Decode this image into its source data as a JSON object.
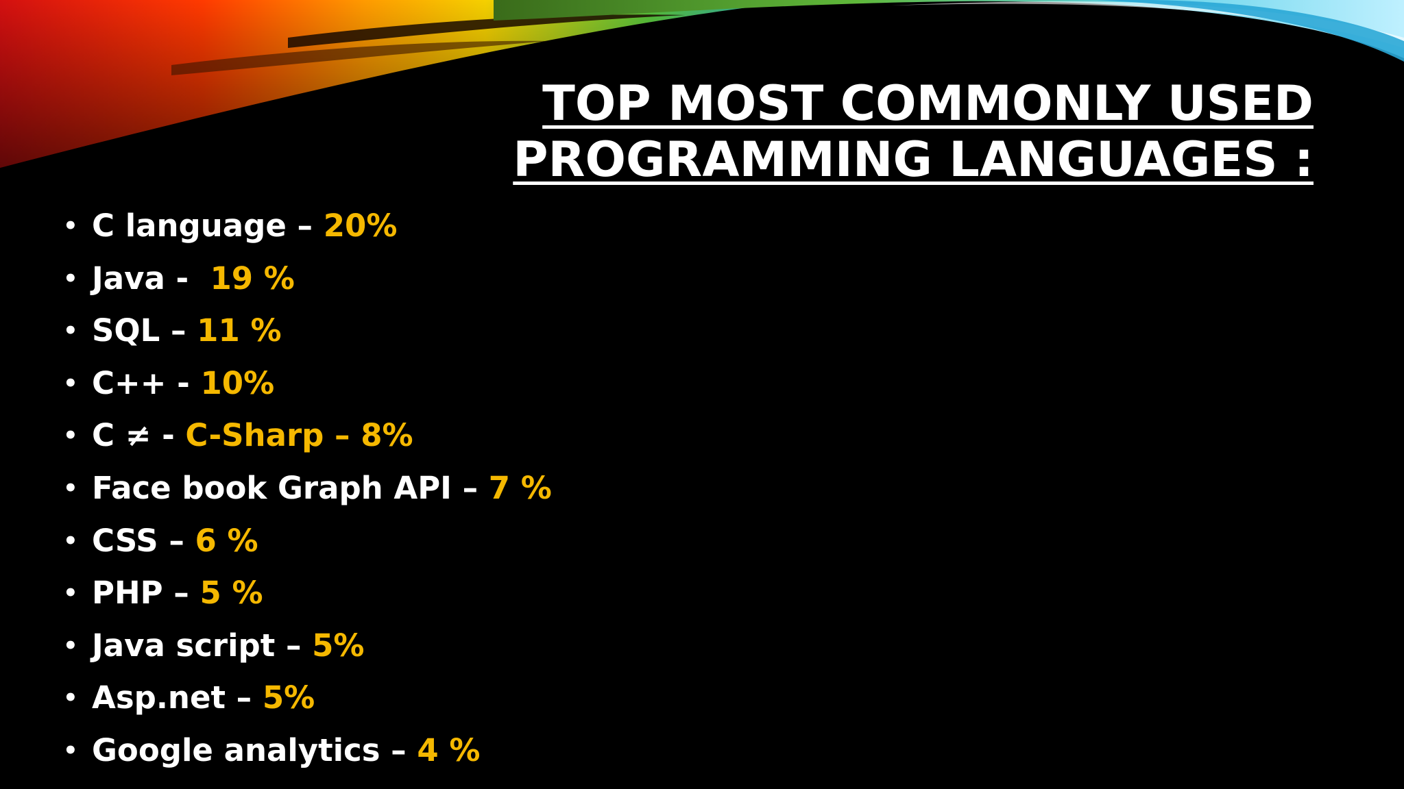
{
  "slide": {
    "title_line1": "TOP MOST COMMONLY USED",
    "title_line2": "PROGRAMMING LANGUAGES :",
    "accent_color": "#f5b800",
    "text_color": "#ffffff",
    "background_color": "#000000",
    "bullet_glyph": "•",
    "items": [
      {
        "label": "C language – ",
        "value": "20%"
      },
      {
        "label": "Java -  ",
        "value": "19 %"
      },
      {
        "label": "SQL – ",
        "value": "11 %"
      },
      {
        "label": "C++ - ",
        "value": "10%"
      },
      {
        "label": "C ≠ - ",
        "value": "C-Sharp – 8%"
      },
      {
        "label": "Face book Graph API – ",
        "value": "7 %"
      },
      {
        "label": "CSS – ",
        "value": "6 %"
      },
      {
        "label": "PHP – ",
        "value": "5 %"
      },
      {
        "label": "Java script – ",
        "value": "5%"
      },
      {
        "label": "Asp.net – ",
        "value": "5%"
      },
      {
        "label": "Google analytics – ",
        "value": "4 %"
      }
    ]
  }
}
